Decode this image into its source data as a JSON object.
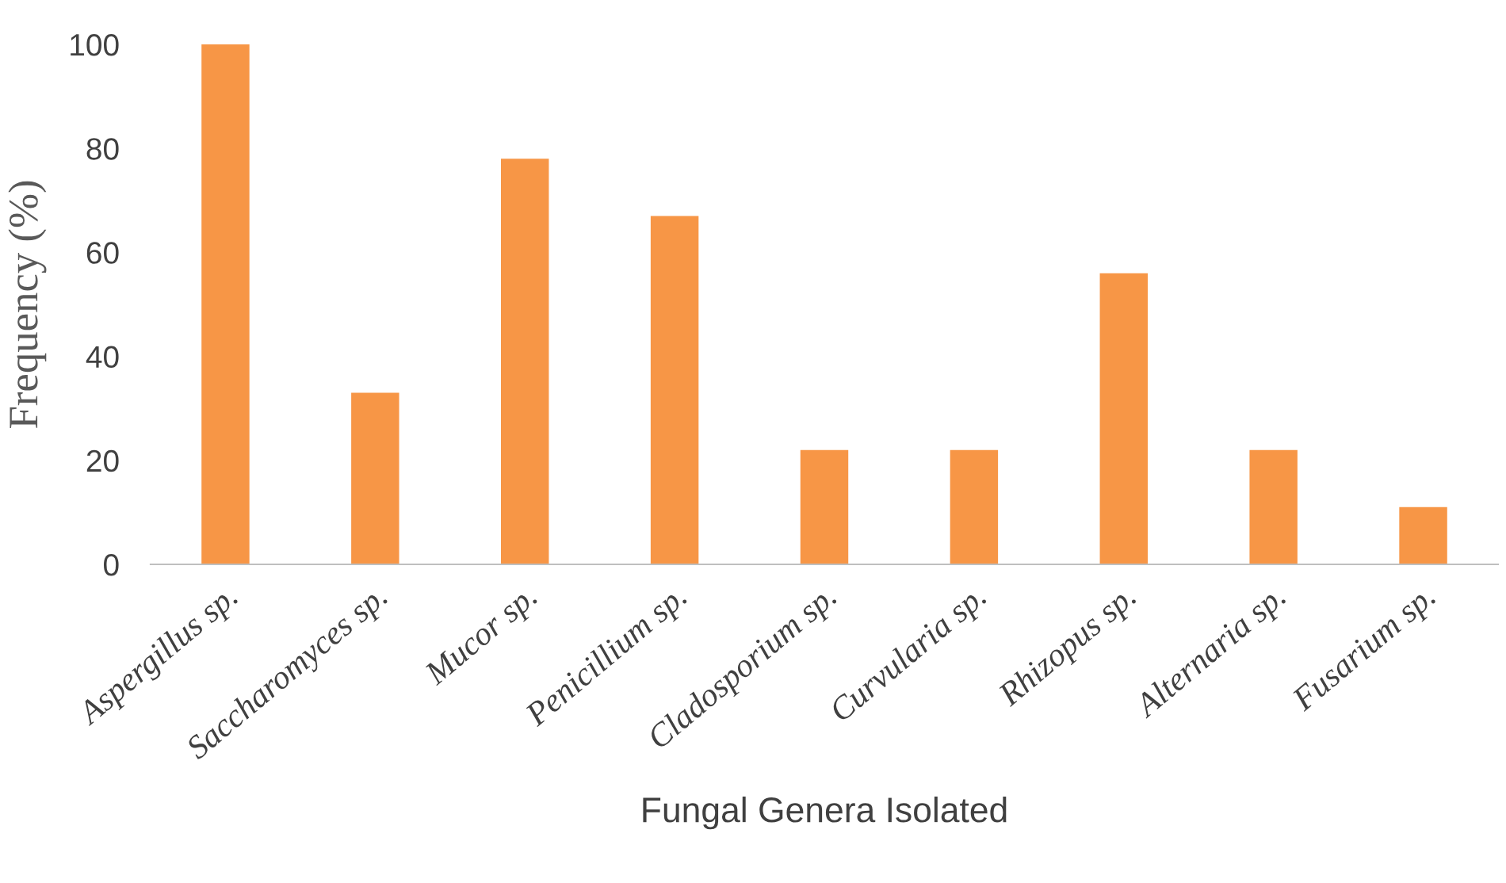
{
  "chart_data": {
    "type": "bar",
    "xlabel": "Fungal Genera Isolated",
    "ylabel": "Frequency (%)",
    "categories": [
      "Aspergillus sp.",
      "Saccharomyces sp.",
      "Mucor sp.",
      "Penicillium sp.",
      "Cladosporium sp.",
      "Curvularia sp.",
      "Rhizopus sp.",
      "Alternaria sp.",
      "Fusarium sp."
    ],
    "values": [
      100,
      33,
      78,
      67,
      22,
      22,
      56,
      22,
      11
    ],
    "color": "#f79646",
    "ylim": [
      0,
      100
    ],
    "yticks": [
      0,
      20,
      40,
      60,
      80,
      100
    ],
    "grid": false,
    "legend": false
  }
}
